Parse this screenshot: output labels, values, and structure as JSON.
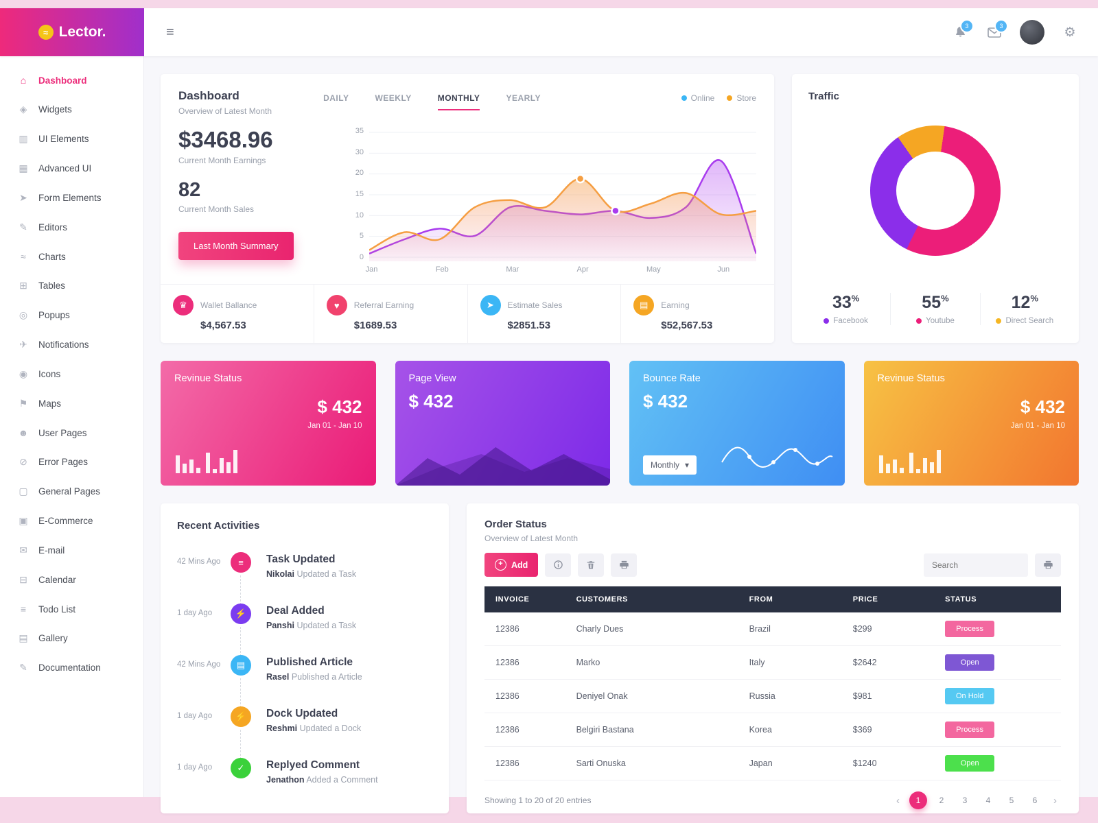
{
  "app": {
    "logo": "Lector."
  },
  "topbar": {
    "notifications_badge": "3",
    "mail_badge": "3"
  },
  "colors": {
    "accent_pink": "#ec2d7b",
    "purple": "#8b2eea",
    "blue": "#3bb6f5",
    "orange": "#f5a623"
  },
  "sidebar": {
    "items": [
      {
        "label": "Dashboard",
        "icon": "dashboard",
        "active": true
      },
      {
        "label": "Widgets",
        "icon": "widgets"
      },
      {
        "label": "UI Elements",
        "icon": "ui-elements"
      },
      {
        "label": "Advanced UI",
        "icon": "advanced-ui"
      },
      {
        "label": "Form Elements",
        "icon": "form-elements"
      },
      {
        "label": "Editors",
        "icon": "editors"
      },
      {
        "label": "Charts",
        "icon": "charts"
      },
      {
        "label": "Tables",
        "icon": "tables"
      },
      {
        "label": "Popups",
        "icon": "popups"
      },
      {
        "label": "Notifications",
        "icon": "notifications"
      },
      {
        "label": "Icons",
        "icon": "icons"
      },
      {
        "label": "Maps",
        "icon": "maps"
      },
      {
        "label": "User Pages",
        "icon": "user-pages"
      },
      {
        "label": "Error Pages",
        "icon": "error-pages"
      },
      {
        "label": "General Pages",
        "icon": "general-pages"
      },
      {
        "label": "E-Commerce",
        "icon": "ecommerce"
      },
      {
        "label": "E-mail",
        "icon": "email"
      },
      {
        "label": "Calendar",
        "icon": "calendar"
      },
      {
        "label": "Todo List",
        "icon": "todo"
      },
      {
        "label": "Gallery",
        "icon": "gallery"
      },
      {
        "label": "Documentation",
        "icon": "documentation"
      }
    ]
  },
  "dashboard_card": {
    "title": "Dashboard",
    "subtitle": "Overview of Latest Month",
    "tabs": [
      {
        "label": "DAILY"
      },
      {
        "label": "WEEKLY"
      },
      {
        "label": "MONTHLY",
        "active": true
      },
      {
        "label": "YEARLY"
      }
    ],
    "legend": [
      {
        "label": "Online",
        "color": "#3bb6f5"
      },
      {
        "label": "Store",
        "color": "#f5a623"
      }
    ],
    "earnings_value": "$3468.96",
    "earnings_label": "Current Month Earnings",
    "sales_value": "82",
    "sales_label": "Current Month Sales",
    "summary_button": "Last Month Summary",
    "stats": [
      {
        "label": "Wallet Ballance",
        "value": "$4,567.53",
        "icon": "wallet",
        "color": "#ec2d7b"
      },
      {
        "label": "Referral Earning",
        "value": "$1689.53",
        "icon": "heart",
        "color": "#f1426d"
      },
      {
        "label": "Estimate Sales",
        "value": "$2851.53",
        "icon": "sales",
        "color": "#3bb6f5"
      },
      {
        "label": "Earning",
        "value": "$52,567.53",
        "icon": "earning",
        "color": "#f5a623"
      }
    ]
  },
  "traffic_card": {
    "title": "Traffic",
    "legend": [
      {
        "pct": "33",
        "label": "Facebook",
        "color": "#8b2eea"
      },
      {
        "pct": "55",
        "label": "Youtube",
        "color": "#ec1e79"
      },
      {
        "pct": "12",
        "label": "Direct Search",
        "color": "#f5b623"
      }
    ]
  },
  "stat_cards": [
    {
      "title": "Revinue Status",
      "value": "$ 432",
      "range": "Jan 01 - Jan 10"
    },
    {
      "title": "Page View",
      "value": "$ 432"
    },
    {
      "title": "Bounce Rate",
      "value": "$ 432",
      "select_value": "Monthly"
    },
    {
      "title": "Revinue Status",
      "value": "$ 432",
      "range": "Jan 01 - Jan 10"
    }
  ],
  "activities_card": {
    "title": "Recent Activities",
    "items": [
      {
        "time": "42 Mins Ago",
        "title": "Task Updated",
        "user": "Nikolai",
        "action": "Updated a Task",
        "icon": "task",
        "color": "#ec2d7b"
      },
      {
        "time": "1 day Ago",
        "title": "Deal Added",
        "user": "Panshi",
        "action": "Updated a Task",
        "icon": "deal",
        "color": "#7b3cf0"
      },
      {
        "time": "42 Mins Ago",
        "title": "Published Article",
        "user": "Rasel",
        "action": "Published a Article",
        "icon": "article",
        "color": "#3bb6f5"
      },
      {
        "time": "1 day Ago",
        "title": "Dock Updated",
        "user": "Reshmi",
        "action": "Updated a Dock",
        "icon": "dock",
        "color": "#f5a623"
      },
      {
        "time": "1 day Ago",
        "title": "Replyed Comment",
        "user": "Jenathon",
        "action": "Added a Comment",
        "icon": "comment",
        "color": "#3ad13a"
      }
    ]
  },
  "orders_card": {
    "title": "Order Status",
    "subtitle": "Overview of Latest Month",
    "add_button": "Add",
    "search_placeholder": "Search",
    "table": {
      "headers": [
        "INVOICE",
        "CUSTOMERS",
        "FROM",
        "PRICE",
        "STATUS"
      ],
      "rows": [
        {
          "invoice": "12386",
          "customer": "Charly Dues",
          "from": "Brazil",
          "price": "$299",
          "status": "Process",
          "status_color": "#f3679f"
        },
        {
          "invoice": "12386",
          "customer": "Marko",
          "from": "Italy",
          "price": "$2642",
          "status": "Open",
          "status_color": "#7e57d4"
        },
        {
          "invoice": "12386",
          "customer": "Deniyel Onak",
          "from": "Russia",
          "price": "$981",
          "status": "On Hold",
          "status_color": "#55c9f2"
        },
        {
          "invoice": "12386",
          "customer": "Belgiri Bastana",
          "from": "Korea",
          "price": "$369",
          "status": "Process",
          "status_color": "#f3679f"
        },
        {
          "invoice": "12386",
          "customer": "Sarti Onuska",
          "from": "Japan",
          "price": "$1240",
          "status": "Open",
          "status_color": "#4ce04c"
        }
      ]
    },
    "showing_text": "Showing 1 to 20 of 20 entries",
    "pagination": {
      "pages": [
        "1",
        "2",
        "3",
        "4",
        "5",
        "6"
      ],
      "active": "1"
    }
  },
  "chart_data": [
    {
      "name": "earnings-overview",
      "type": "area",
      "title": "Overview of Latest Month",
      "x_labels": [
        "Jan",
        "Feb",
        "Mar",
        "Apr",
        "May",
        "Jun"
      ],
      "y_ticks": [
        35,
        30,
        20,
        15,
        10,
        5,
        0
      ],
      "ylim": [
        0,
        35
      ],
      "legend_position": "top-right",
      "series": [
        {
          "name": "Online",
          "color": "#a93cee",
          "values": [
            1,
            5,
            8,
            6,
            14,
            13,
            12,
            13,
            11,
            14,
            27,
            1
          ]
        },
        {
          "name": "Store",
          "color": "#f59e42",
          "values": [
            2,
            7,
            5,
            14,
            16,
            14,
            22,
            13,
            15,
            18,
            12,
            13
          ]
        }
      ],
      "markers": [
        {
          "series": "Store",
          "index": 6,
          "value": 22
        },
        {
          "series": "Online",
          "index": 7,
          "value": 13
        }
      ]
    },
    {
      "name": "traffic-sources",
      "type": "pie",
      "title": "Traffic",
      "labels": [
        "Facebook",
        "Youtube",
        "Direct Search"
      ],
      "values": [
        33,
        55,
        12
      ],
      "colors": [
        "#8b2eea",
        "#ec1e79",
        "#f5a623"
      ]
    }
  ]
}
